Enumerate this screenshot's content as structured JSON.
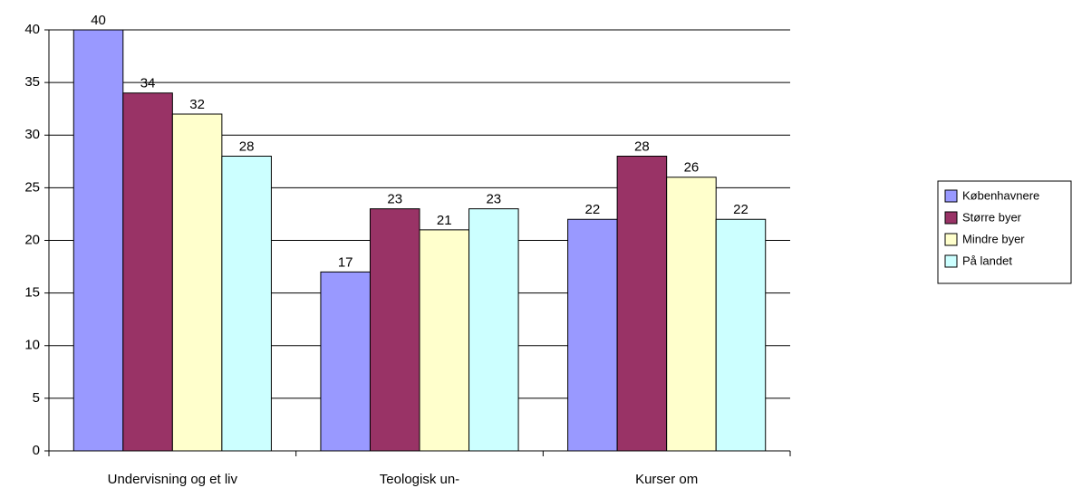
{
  "chart_data": {
    "type": "bar",
    "categories": [
      "Undervisning og et liv",
      "Teologisk un-",
      "Kurser om"
    ],
    "series": [
      {
        "name": "Københavnere",
        "color": "#9999ff",
        "values": [
          40,
          17,
          22
        ]
      },
      {
        "name": "Større byer",
        "color": "#993366",
        "values": [
          34,
          23,
          28
        ]
      },
      {
        "name": "Mindre byer",
        "color": "#ffffcc",
        "values": [
          32,
          21,
          26
        ]
      },
      {
        "name": "På landet",
        "color": "#ccffff",
        "values": [
          28,
          23,
          22
        ]
      }
    ],
    "ylim": [
      0,
      40
    ],
    "yticks": [
      0,
      5,
      10,
      15,
      20,
      25,
      30,
      35,
      40
    ],
    "grid": true,
    "legend": "right"
  }
}
